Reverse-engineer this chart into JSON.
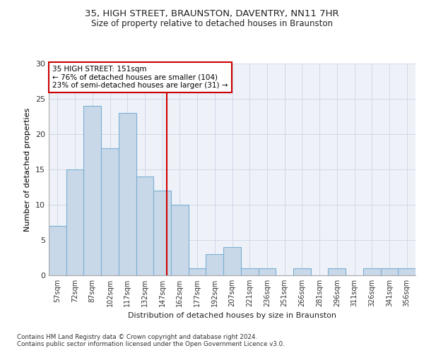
{
  "title_line1": "35, HIGH STREET, BRAUNSTON, DAVENTRY, NN11 7HR",
  "title_line2": "Size of property relative to detached houses in Braunston",
  "xlabel": "Distribution of detached houses by size in Braunston",
  "ylabel": "Number of detached properties",
  "categories": [
    "57sqm",
    "72sqm",
    "87sqm",
    "102sqm",
    "117sqm",
    "132sqm",
    "147sqm",
    "162sqm",
    "177sqm",
    "192sqm",
    "207sqm",
    "221sqm",
    "236sqm",
    "251sqm",
    "266sqm",
    "281sqm",
    "296sqm",
    "311sqm",
    "326sqm",
    "341sqm",
    "356sqm"
  ],
  "values": [
    7,
    15,
    24,
    18,
    23,
    14,
    12,
    10,
    1,
    3,
    4,
    1,
    1,
    0,
    1,
    0,
    1,
    0,
    1,
    1,
    1
  ],
  "bar_color": "#c8d8e8",
  "bar_edge_color": "#7bafd4",
  "bar_linewidth": 0.8,
  "grid_color": "#d0d8e8",
  "background_color": "#eef2f8",
  "annotation_box_color": "#ffffff",
  "annotation_border_color": "#cc0000",
  "annotation_text": [
    "35 HIGH STREET: 151sqm",
    "← 76% of detached houses are smaller (104)",
    "23% of semi-detached houses are larger (31) →"
  ],
  "property_line_color": "#cc0000",
  "ylim": [
    0,
    30
  ],
  "yticks": [
    0,
    5,
    10,
    15,
    20,
    25,
    30
  ],
  "footer_text": "Contains HM Land Registry data © Crown copyright and database right 2024.\nContains public sector information licensed under the Open Government Licence v3.0."
}
